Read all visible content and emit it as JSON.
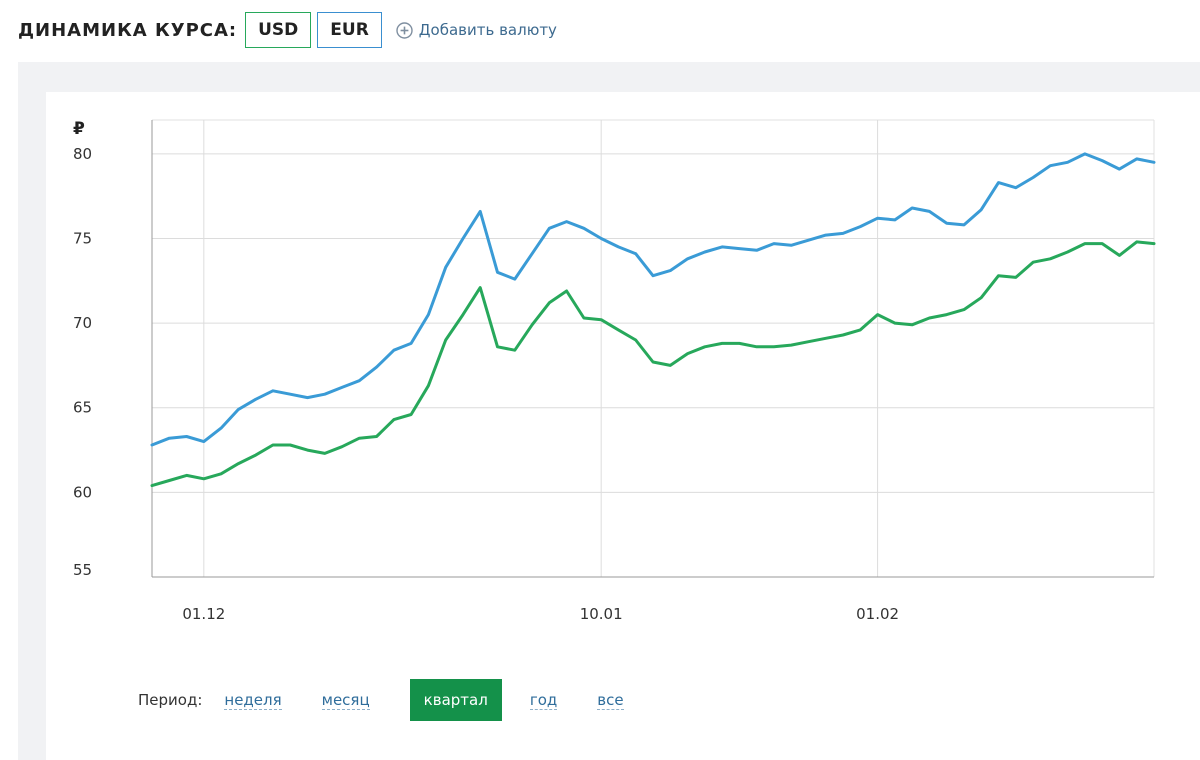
{
  "header": {
    "title": "ДИНАМИКА КУРСА:",
    "currency_buttons": [
      "USD",
      "EUR"
    ],
    "add_currency_label": "Добавить валюту"
  },
  "colors": {
    "usd": "#27a85b",
    "eur": "#3a9bd6",
    "active_period_bg": "#14914a",
    "link": "#2f6d9b"
  },
  "period": {
    "label": "Период:",
    "options": [
      "неделя",
      "месяц",
      "квартал",
      "год",
      "все"
    ],
    "active": "квартал"
  },
  "chart_data": {
    "type": "line",
    "ylabel": "₽",
    "ylim": [
      55,
      82
    ],
    "yticks": [
      55,
      60,
      65,
      70,
      75,
      80
    ],
    "xticks": [
      "01.12",
      "10.01",
      "01.02"
    ],
    "grid": true,
    "series": [
      {
        "color": "#3a9bd6",
        "values": [
          62.8,
          63.2,
          63.3,
          63.0,
          63.8,
          64.9,
          65.5,
          66.0,
          65.8,
          65.6,
          65.8,
          66.2,
          66.6,
          67.4,
          68.4,
          68.8,
          70.5,
          73.3,
          75.0,
          76.6,
          73.0,
          72.6,
          74.1,
          75.6,
          76.0,
          75.6,
          75.0,
          74.5,
          74.1,
          72.8,
          73.1,
          73.8,
          74.2,
          74.5,
          74.4,
          74.3,
          74.7,
          74.6,
          74.9,
          75.2,
          75.3,
          75.7,
          76.2,
          76.1,
          76.8,
          76.6,
          75.9,
          75.8,
          76.7,
          78.3,
          78.0,
          78.6,
          79.3,
          79.5,
          80.0,
          79.6,
          79.1,
          79.7,
          79.5
        ]
      },
      {
        "color": "#27a85b",
        "values": [
          60.4,
          60.7,
          61.0,
          60.8,
          61.1,
          61.7,
          62.2,
          62.8,
          62.8,
          62.5,
          62.3,
          62.7,
          63.2,
          63.3,
          64.3,
          64.6,
          66.3,
          69.0,
          70.5,
          72.1,
          68.6,
          68.4,
          69.9,
          71.2,
          71.9,
          70.3,
          70.2,
          69.6,
          69.0,
          67.7,
          67.5,
          68.2,
          68.6,
          68.8,
          68.8,
          68.6,
          68.6,
          68.7,
          68.9,
          69.1,
          69.3,
          69.6,
          70.5,
          70.0,
          69.9,
          70.3,
          70.5,
          70.8,
          71.5,
          72.8,
          72.7,
          73.6,
          73.8,
          74.2,
          74.7,
          74.7,
          74.0,
          74.8,
          74.7
        ]
      }
    ]
  }
}
